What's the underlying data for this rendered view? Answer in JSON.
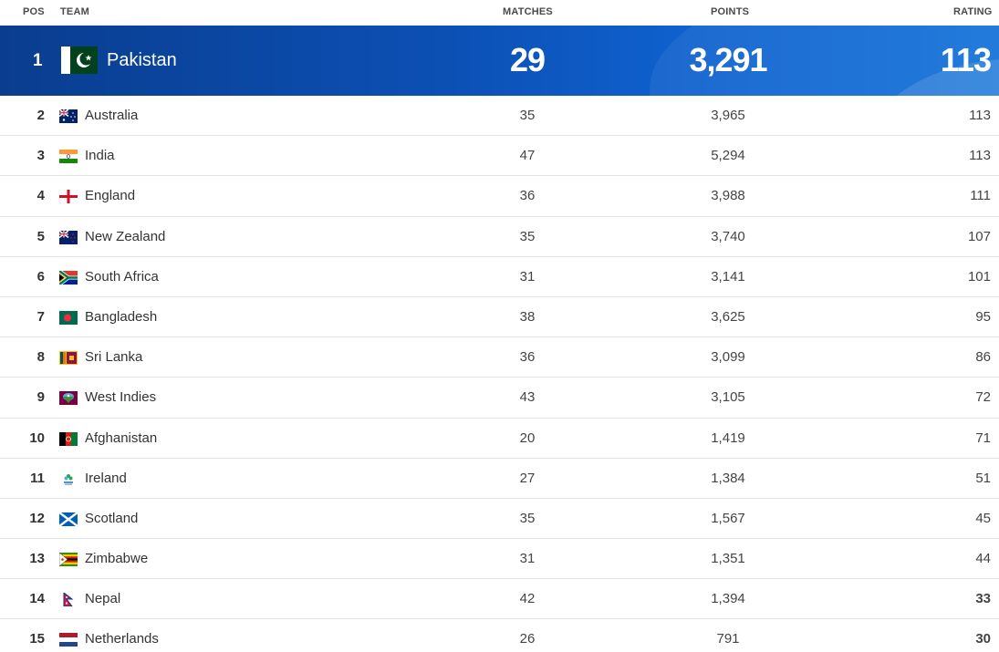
{
  "columns": {
    "pos": "POS",
    "team": "TEAM",
    "matches": "MATCHES",
    "points": "POINTS",
    "rating": "RATING"
  },
  "leader": {
    "pos": "1",
    "team": "Pakistan",
    "flag": "pakistan-flag-icon",
    "matches": "29",
    "points": "3,291",
    "rating": "113"
  },
  "rows": [
    {
      "pos": "2",
      "team": "Australia",
      "flag": "australia-flag-icon",
      "matches": "35",
      "points": "3,965",
      "rating": "113"
    },
    {
      "pos": "3",
      "team": "India",
      "flag": "india-flag-icon",
      "matches": "47",
      "points": "5,294",
      "rating": "113"
    },
    {
      "pos": "4",
      "team": "England",
      "flag": "england-flag-icon",
      "matches": "36",
      "points": "3,988",
      "rating": "111"
    },
    {
      "pos": "5",
      "team": "New Zealand",
      "flag": "new-zealand-flag-icon",
      "matches": "35",
      "points": "3,740",
      "rating": "107"
    },
    {
      "pos": "6",
      "team": "South Africa",
      "flag": "south-africa-flag-icon",
      "matches": "31",
      "points": "3,141",
      "rating": "101"
    },
    {
      "pos": "7",
      "team": "Bangladesh",
      "flag": "bangladesh-flag-icon",
      "matches": "38",
      "points": "3,625",
      "rating": "95"
    },
    {
      "pos": "8",
      "team": "Sri Lanka",
      "flag": "sri-lanka-flag-icon",
      "matches": "36",
      "points": "3,099",
      "rating": "86"
    },
    {
      "pos": "9",
      "team": "West Indies",
      "flag": "west-indies-flag-icon",
      "matches": "43",
      "points": "3,105",
      "rating": "72"
    },
    {
      "pos": "10",
      "team": "Afghanistan",
      "flag": "afghanistan-flag-icon",
      "matches": "20",
      "points": "1,419",
      "rating": "71"
    },
    {
      "pos": "11",
      "team": "Ireland",
      "flag": "ireland-flag-icon",
      "matches": "27",
      "points": "1,384",
      "rating": "51"
    },
    {
      "pos": "12",
      "team": "Scotland",
      "flag": "scotland-flag-icon",
      "matches": "35",
      "points": "1,567",
      "rating": "45"
    },
    {
      "pos": "13",
      "team": "Zimbabwe",
      "flag": "zimbabwe-flag-icon",
      "matches": "31",
      "points": "1,351",
      "rating": "44"
    },
    {
      "pos": "14",
      "team": "Nepal",
      "flag": "nepal-flag-icon",
      "matches": "42",
      "points": "1,394",
      "rating": "33"
    },
    {
      "pos": "15",
      "team": "Netherlands",
      "flag": "netherlands-flag-icon",
      "matches": "26",
      "points": "791",
      "rating": "30"
    }
  ],
  "colors": {
    "leader_bg": "#0c50b5",
    "divider": "#e4e4e4"
  }
}
